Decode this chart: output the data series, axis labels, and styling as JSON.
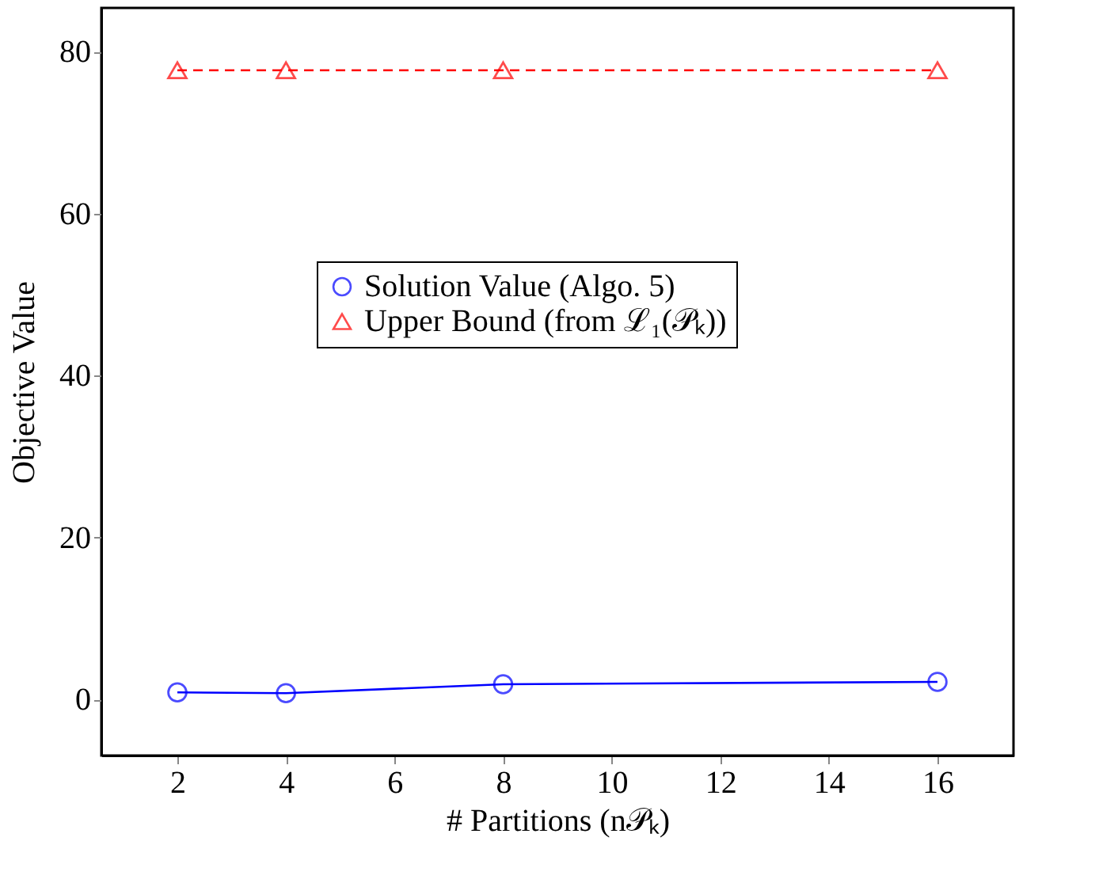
{
  "chart_data": {
    "type": "line",
    "xlabel": "# Partitions (n𝒫ₖ)",
    "ylabel": "Objective Value",
    "x": [
      2,
      4,
      8,
      16
    ],
    "series": [
      {
        "name": "Solution Value (Algo. 5)",
        "color": "#0000ff",
        "values": [
          0.9,
          0.8,
          1.9,
          2.2
        ],
        "marker": "circle",
        "line_style": "solid"
      },
      {
        "name": "Upper Bound (from ℒ₁(𝒫ₖ))",
        "color": "#ff0000",
        "values": [
          77.7,
          77.7,
          77.7,
          77.7
        ],
        "marker": "triangle",
        "line_style": "dashed"
      }
    ],
    "xlim": [
      0.6,
      17.4
    ],
    "xticks": [
      2,
      4,
      6,
      8,
      10,
      12,
      14,
      16
    ],
    "ylim": [
      -6.9,
      85.4
    ],
    "yticks": [
      0,
      20,
      40,
      60,
      80
    ],
    "grid": false,
    "legend": "right"
  }
}
